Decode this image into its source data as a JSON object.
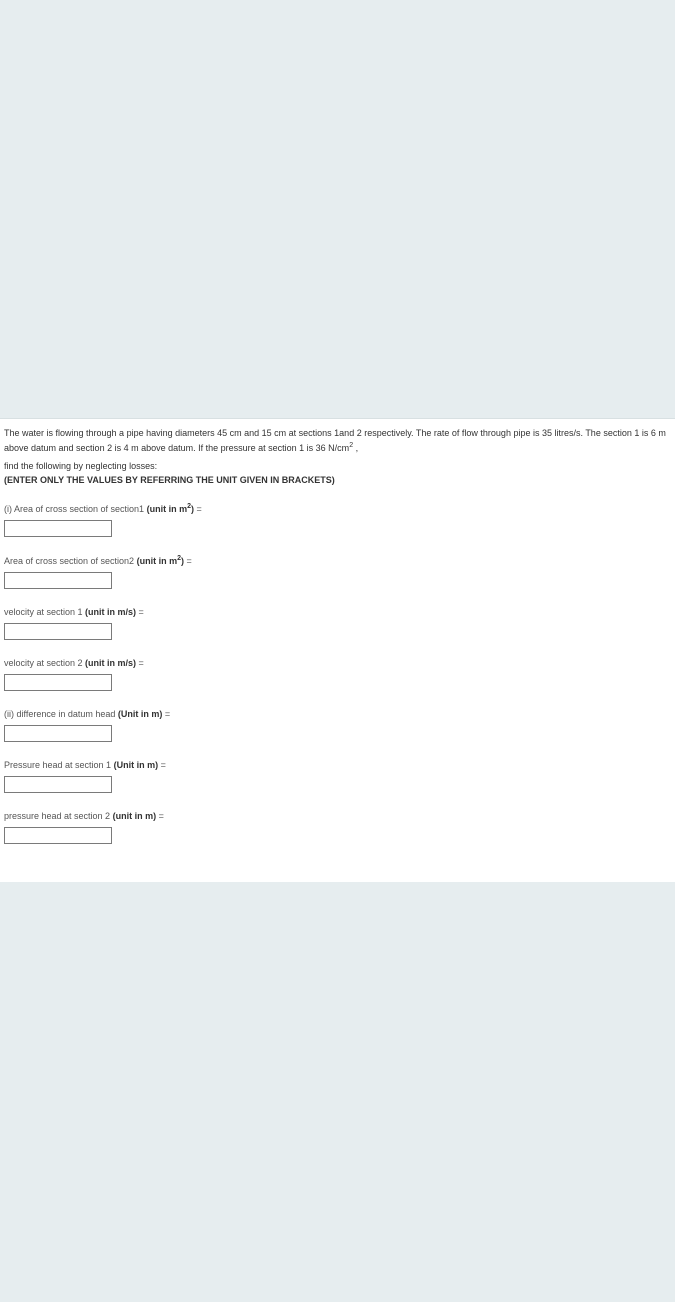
{
  "problem": {
    "text_part1": "The water is flowing through a pipe having diameters 45 cm and 15 cm at sections 1and 2 respectively. The rate of flow through pipe is 35 litres/s. The section 1 is 6 m above datum and section  2 is 4 m above datum. If the pressure at section 1 is 36 N/cm",
    "text_sup": "2",
    "text_part2": " ,",
    "find_line": "find the  following by neglecting losses:",
    "instruction": "(ENTER ONLY THE VALUES BY REFERRING THE UNIT GIVEN IN BRACKETS)"
  },
  "fields": [
    {
      "label_pre": "(i) Area of cross section of section1 ",
      "label_bold": "(unit in m",
      "label_sup": "2",
      "label_bold2": ")",
      "label_post": " ="
    },
    {
      "label_pre": "Area of cross section of section2 ",
      "label_bold": "(unit in m",
      "label_sup": "2",
      "label_bold2": ")",
      "label_post": " ="
    },
    {
      "label_pre": "velocity  at section 1 ",
      "label_bold": "(unit in m/s)",
      "label_sup": "",
      "label_bold2": "",
      "label_post": " ="
    },
    {
      "label_pre": "velocity  at section 2 ",
      "label_bold": "(unit in m/s)",
      "label_sup": "",
      "label_bold2": "",
      "label_post": " ="
    },
    {
      "label_pre": "(ii) difference in datum head ",
      "label_bold": "(Unit in m)",
      "label_sup": "",
      "label_bold2": "",
      "label_post": " ="
    },
    {
      "label_pre": "Pressure head at section 1 ",
      "label_bold": "(Unit in m)",
      "label_sup": "",
      "label_bold2": "",
      "label_post": " ="
    },
    {
      "label_pre": "pressure head at section 2 ",
      "label_bold": "(unit in m)",
      "label_sup": "",
      "label_bold2": "",
      "label_post": " ="
    }
  ],
  "colors": {
    "page_bg": "#e6edef",
    "content_bg": "#ffffff",
    "text": "#333333",
    "label_text": "#555555",
    "input_border": "#7a7a7a"
  }
}
